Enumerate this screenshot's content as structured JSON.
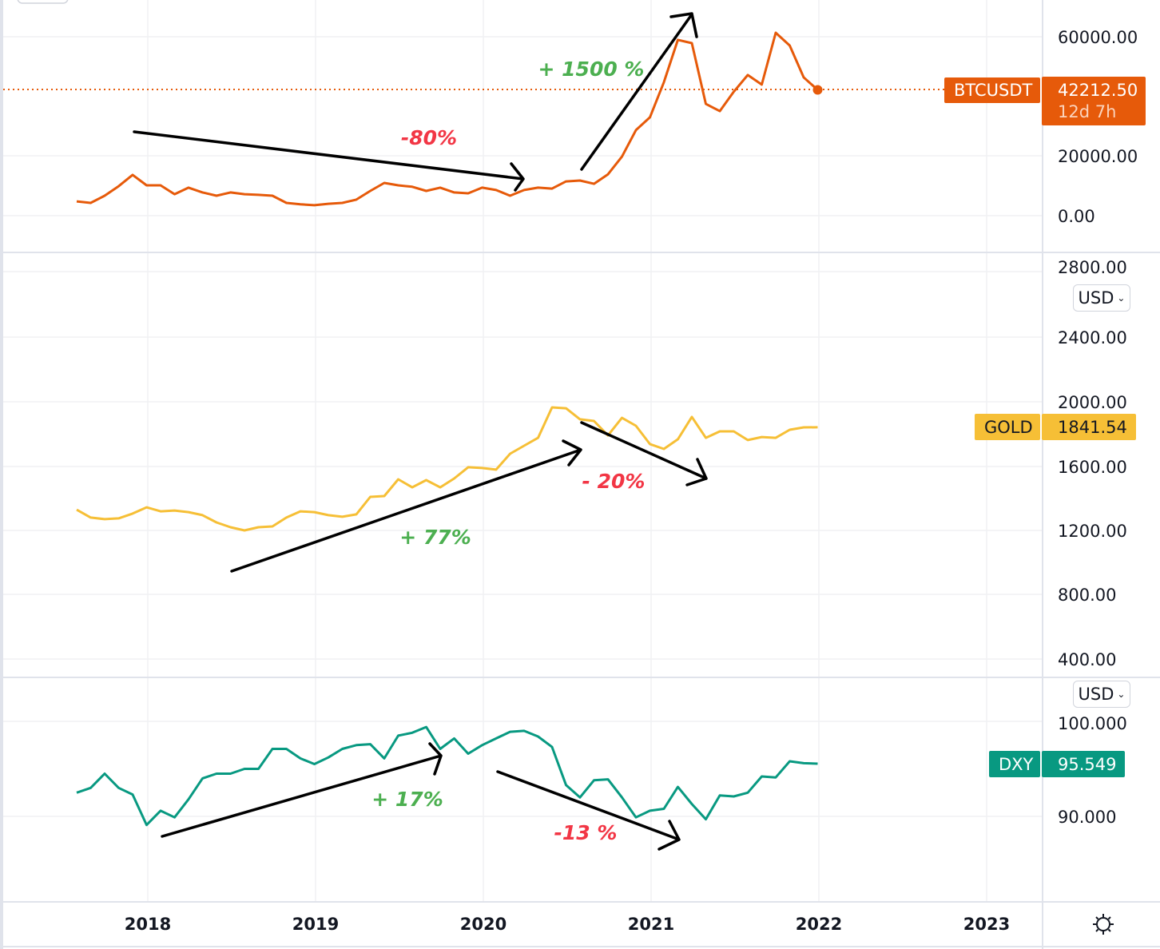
{
  "colors": {
    "btc": "#e65a0a",
    "gold": "#f6bf36",
    "dxy": "#089981",
    "up_note": "#4caf50",
    "down_note": "#f23645",
    "grid": "#f0f1f4",
    "border": "#e0e3eb"
  },
  "chart_data": [
    {
      "type": "line",
      "name": "BTCUSDT",
      "x_start": "2017-08",
      "x_step": "1 month",
      "values": [
        4800,
        4300,
        6700,
        9900,
        13700,
        10200,
        10200,
        7200,
        9400,
        7800,
        6700,
        7800,
        7200,
        7000,
        6700,
        4300,
        3800,
        3500,
        4000,
        4300,
        5400,
        8300,
        11000,
        10200,
        9700,
        8300,
        9400,
        7800,
        7500,
        9400,
        8600,
        6700,
        8600,
        9400,
        9100,
        11500,
        11800,
        10700,
        13900,
        19800,
        28700,
        33000,
        44800,
        59000,
        57900,
        37500,
        35100,
        41600,
        47200,
        44000,
        61400,
        57100,
        46400,
        42212.5
      ],
      "y_ticks": [
        "60000.00",
        "20000.00",
        "0.00"
      ],
      "last_label": "BTCUSDT",
      "last_value": "42212.50",
      "countdown": "12d 7h"
    },
    {
      "type": "line",
      "name": "GOLD",
      "x_start": "2017-08",
      "x_step": "1 month",
      "values": [
        1329,
        1280,
        1270,
        1275,
        1305,
        1344,
        1319,
        1324,
        1314,
        1295,
        1250,
        1220,
        1200,
        1220,
        1225,
        1280,
        1319,
        1314,
        1295,
        1285,
        1300,
        1409,
        1414,
        1518,
        1468,
        1513,
        1468,
        1523,
        1593,
        1588,
        1578,
        1677,
        1727,
        1776,
        1965,
        1960,
        1891,
        1881,
        1791,
        1900,
        1851,
        1737,
        1707,
        1767,
        1906,
        1776,
        1816,
        1816,
        1762,
        1781,
        1776,
        1826,
        1841,
        1841.54
      ],
      "y_ticks": [
        "2800.00",
        "2400.00",
        "2000.00",
        "1600.00",
        "1200.00",
        "800.00",
        "400.00"
      ],
      "last_label": "GOLD",
      "last_value": "1841.54",
      "currency": "USD"
    },
    {
      "type": "line",
      "name": "DXY",
      "x_start": "2017-08",
      "x_step": "1 month",
      "values": [
        92.5,
        93.0,
        94.5,
        93.0,
        92.3,
        89.1,
        90.6,
        89.9,
        91.8,
        94.0,
        94.5,
        94.5,
        95.0,
        95.0,
        97.1,
        97.1,
        96.1,
        95.5,
        96.2,
        97.1,
        97.5,
        97.6,
        96.1,
        98.5,
        98.8,
        99.4,
        97.1,
        98.2,
        96.6,
        97.5,
        98.2,
        98.9,
        99.0,
        98.4,
        97.3,
        93.3,
        92.0,
        93.8,
        93.9,
        92.0,
        89.9,
        90.6,
        90.8,
        93.1,
        91.3,
        89.7,
        92.2,
        92.1,
        92.5,
        94.2,
        94.1,
        95.8,
        95.6,
        95.549
      ],
      "y_ticks": [
        "100.000",
        "90.000"
      ],
      "last_label": "DXY",
      "last_value": "95.549",
      "currency": "USD"
    }
  ],
  "time_axis": [
    "2018",
    "2019",
    "2020",
    "2021",
    "2022",
    "2023"
  ],
  "annotations": {
    "btc_up": "+ 1500 %",
    "btc_down": "-80%",
    "gold_up": "+ 77%",
    "gold_down": "- 20%",
    "dxy_up": "+ 17%",
    "dxy_down": "-13 %"
  },
  "settings_icon": "gear-icon"
}
